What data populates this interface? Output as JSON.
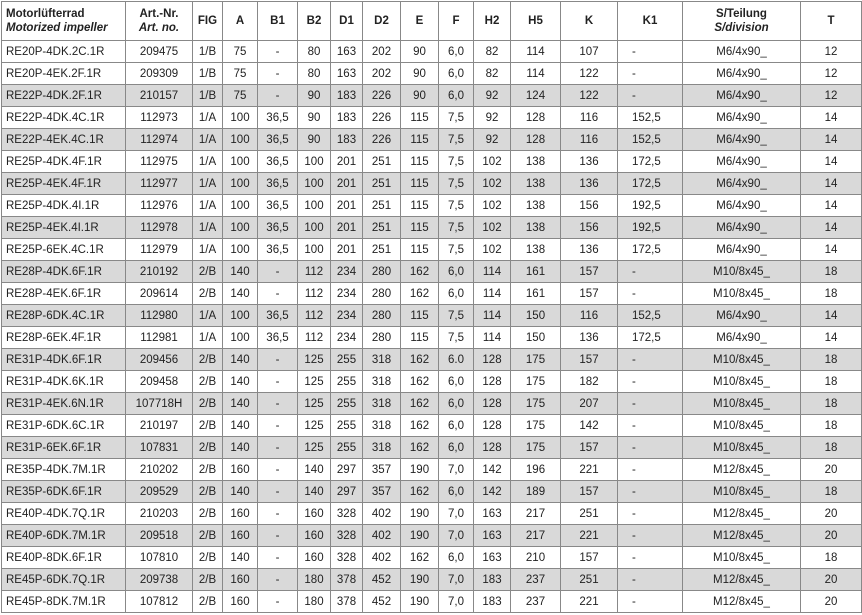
{
  "table": {
    "header": [
      [
        "Motorlüfterrad",
        "Motorized impeller"
      ],
      [
        "Art.-Nr.",
        "Art. no."
      ],
      [
        "FIG"
      ],
      [
        "A"
      ],
      [
        "B1"
      ],
      [
        "B2"
      ],
      [
        "D1"
      ],
      [
        "D2"
      ],
      [
        "E"
      ],
      [
        "F"
      ],
      [
        "H2"
      ],
      [
        "H5"
      ],
      [
        "K"
      ],
      [
        "K1"
      ],
      [
        "S/Teilung",
        "S/division"
      ],
      [
        "T"
      ]
    ],
    "rows": [
      [
        "RE20P-4DK.2C.1R",
        "209475",
        "1/B",
        "75",
        "-",
        "80",
        "163",
        "202",
        "90",
        "6,0",
        "82",
        "114",
        "107",
        "-",
        "M6/4x90_",
        "12"
      ],
      [
        "RE20P-4EK.2F.1R",
        "209309",
        "1/B",
        "75",
        "-",
        "80",
        "163",
        "202",
        "90",
        "6,0",
        "82",
        "114",
        "122",
        "-",
        "M6/4x90_",
        "12"
      ],
      [
        "RE22P-4DK.2F.1R",
        "210157",
        "1/B",
        "75",
        "-",
        "90",
        "183",
        "226",
        "90",
        "6,0",
        "92",
        "124",
        "122",
        "-",
        "M6/4x90_",
        "12"
      ],
      [
        "RE22P-4DK.4C.1R",
        "112973",
        "1/A",
        "100",
        "36,5",
        "90",
        "183",
        "226",
        "115",
        "7,5",
        "92",
        "128",
        "116",
        "152,5",
        "M6/4x90_",
        "14"
      ],
      [
        "RE22P-4EK.4C.1R",
        "112974",
        "1/A",
        "100",
        "36,5",
        "90",
        "183",
        "226",
        "115",
        "7,5",
        "92",
        "128",
        "116",
        "152,5",
        "M6/4x90_",
        "14"
      ],
      [
        "RE25P-4DK.4F.1R",
        "112975",
        "1/A",
        "100",
        "36,5",
        "100",
        "201",
        "251",
        "115",
        "7,5",
        "102",
        "138",
        "136",
        "172,5",
        "M6/4x90_",
        "14"
      ],
      [
        "RE25P-4EK.4F.1R",
        "112977",
        "1/A",
        "100",
        "36,5",
        "100",
        "201",
        "251",
        "115",
        "7,5",
        "102",
        "138",
        "136",
        "172,5",
        "M6/4x90_",
        "14"
      ],
      [
        "RE25P-4DK.4I.1R",
        "112976",
        "1/A",
        "100",
        "36,5",
        "100",
        "201",
        "251",
        "115",
        "7,5",
        "102",
        "138",
        "156",
        "192,5",
        "M6/4x90_",
        "14"
      ],
      [
        "RE25P-4EK.4I.1R",
        "112978",
        "1/A",
        "100",
        "36,5",
        "100",
        "201",
        "251",
        "115",
        "7,5",
        "102",
        "138",
        "156",
        "192,5",
        "M6/4x90_",
        "14"
      ],
      [
        "RE25P-6EK.4C.1R",
        "112979",
        "1/A",
        "100",
        "36,5",
        "100",
        "201",
        "251",
        "115",
        "7,5",
        "102",
        "138",
        "136",
        "172,5",
        "M6/4x90_",
        "14"
      ],
      [
        "RE28P-4DK.6F.1R",
        "210192",
        "2/B",
        "140",
        "-",
        "112",
        "234",
        "280",
        "162",
        "6,0",
        "114",
        "161",
        "157",
        "-",
        "M10/8x45_",
        "18"
      ],
      [
        "RE28P-4EK.6F.1R",
        "209614",
        "2/B",
        "140",
        "-",
        "112",
        "234",
        "280",
        "162",
        "6,0",
        "114",
        "161",
        "157",
        "-",
        "M10/8x45_",
        "18"
      ],
      [
        "RE28P-6DK.4C.1R",
        "112980",
        "1/A",
        "100",
        "36,5",
        "112",
        "234",
        "280",
        "115",
        "7,5",
        "114",
        "150",
        "116",
        "152,5",
        "M6/4x90_",
        "14"
      ],
      [
        "RE28P-6EK.4F.1R",
        "112981",
        "1/A",
        "100",
        "36,5",
        "112",
        "234",
        "280",
        "115",
        "7,5",
        "114",
        "150",
        "136",
        "172,5",
        "M6/4x90_",
        "14"
      ],
      [
        "RE31P-4DK.6F.1R",
        "209456",
        "2/B",
        "140",
        "-",
        "125",
        "255",
        "318",
        "162",
        "6.0",
        "128",
        "175",
        "157",
        "-",
        "M10/8x45_",
        "18"
      ],
      [
        "RE31P-4DK.6K.1R",
        "209458",
        "2/B",
        "140",
        "-",
        "125",
        "255",
        "318",
        "162",
        "6,0",
        "128",
        "175",
        "182",
        "-",
        "M10/8x45_",
        "18"
      ],
      [
        "RE31P-4EK.6N.1R",
        "107718H",
        "2/B",
        "140",
        "-",
        "125",
        "255",
        "318",
        "162",
        "6,0",
        "128",
        "175",
        "207",
        "-",
        "M10/8x45_",
        "18"
      ],
      [
        "RE31P-6DK.6C.1R",
        "210197",
        "2/B",
        "140",
        "-",
        "125",
        "255",
        "318",
        "162",
        "6,0",
        "128",
        "175",
        "142",
        "-",
        "M10/8x45_",
        "18"
      ],
      [
        "RE31P-6EK.6F.1R",
        "107831",
        "2/B",
        "140",
        "-",
        "125",
        "255",
        "318",
        "162",
        "6,0",
        "128",
        "175",
        "157",
        "-",
        "M10/8x45_",
        "18"
      ],
      [
        "RE35P-4DK.7M.1R",
        "210202",
        "2/B",
        "160",
        "-",
        "140",
        "297",
        "357",
        "190",
        "7,0",
        "142",
        "196",
        "221",
        "-",
        "M12/8x45_",
        "20"
      ],
      [
        "RE35P-6DK.6F.1R",
        "209529",
        "2/B",
        "140",
        "-",
        "140",
        "297",
        "357",
        "162",
        "6,0",
        "142",
        "189",
        "157",
        "-",
        "M10/8x45_",
        "18"
      ],
      [
        "RE40P-4DK.7Q.1R",
        "210203",
        "2/B",
        "160",
        "-",
        "160",
        "328",
        "402",
        "190",
        "7,0",
        "163",
        "217",
        "251",
        "-",
        "M12/8x45_",
        "20"
      ],
      [
        "RE40P-6DK.7M.1R",
        "209518",
        "2/B",
        "160",
        "-",
        "160",
        "328",
        "402",
        "190",
        "7,0",
        "163",
        "217",
        "221",
        "-",
        "M12/8x45_",
        "20"
      ],
      [
        "RE40P-8DK.6F.1R",
        "107810",
        "2/B",
        "140",
        "-",
        "160",
        "328",
        "402",
        "162",
        "6,0",
        "163",
        "210",
        "157",
        "-",
        "M10/8x45_",
        "18"
      ],
      [
        "RE45P-6DK.7Q.1R",
        "209738",
        "2/B",
        "160",
        "-",
        "180",
        "378",
        "452",
        "190",
        "7,0",
        "183",
        "237",
        "251",
        "-",
        "M12/8x45_",
        "20"
      ],
      [
        "RE45P-8DK.7M.1R",
        "107812",
        "2/B",
        "160",
        "-",
        "180",
        "378",
        "452",
        "190",
        "7,0",
        "183",
        "237",
        "221",
        "-",
        "M12/8x45_",
        "20"
      ]
    ]
  }
}
